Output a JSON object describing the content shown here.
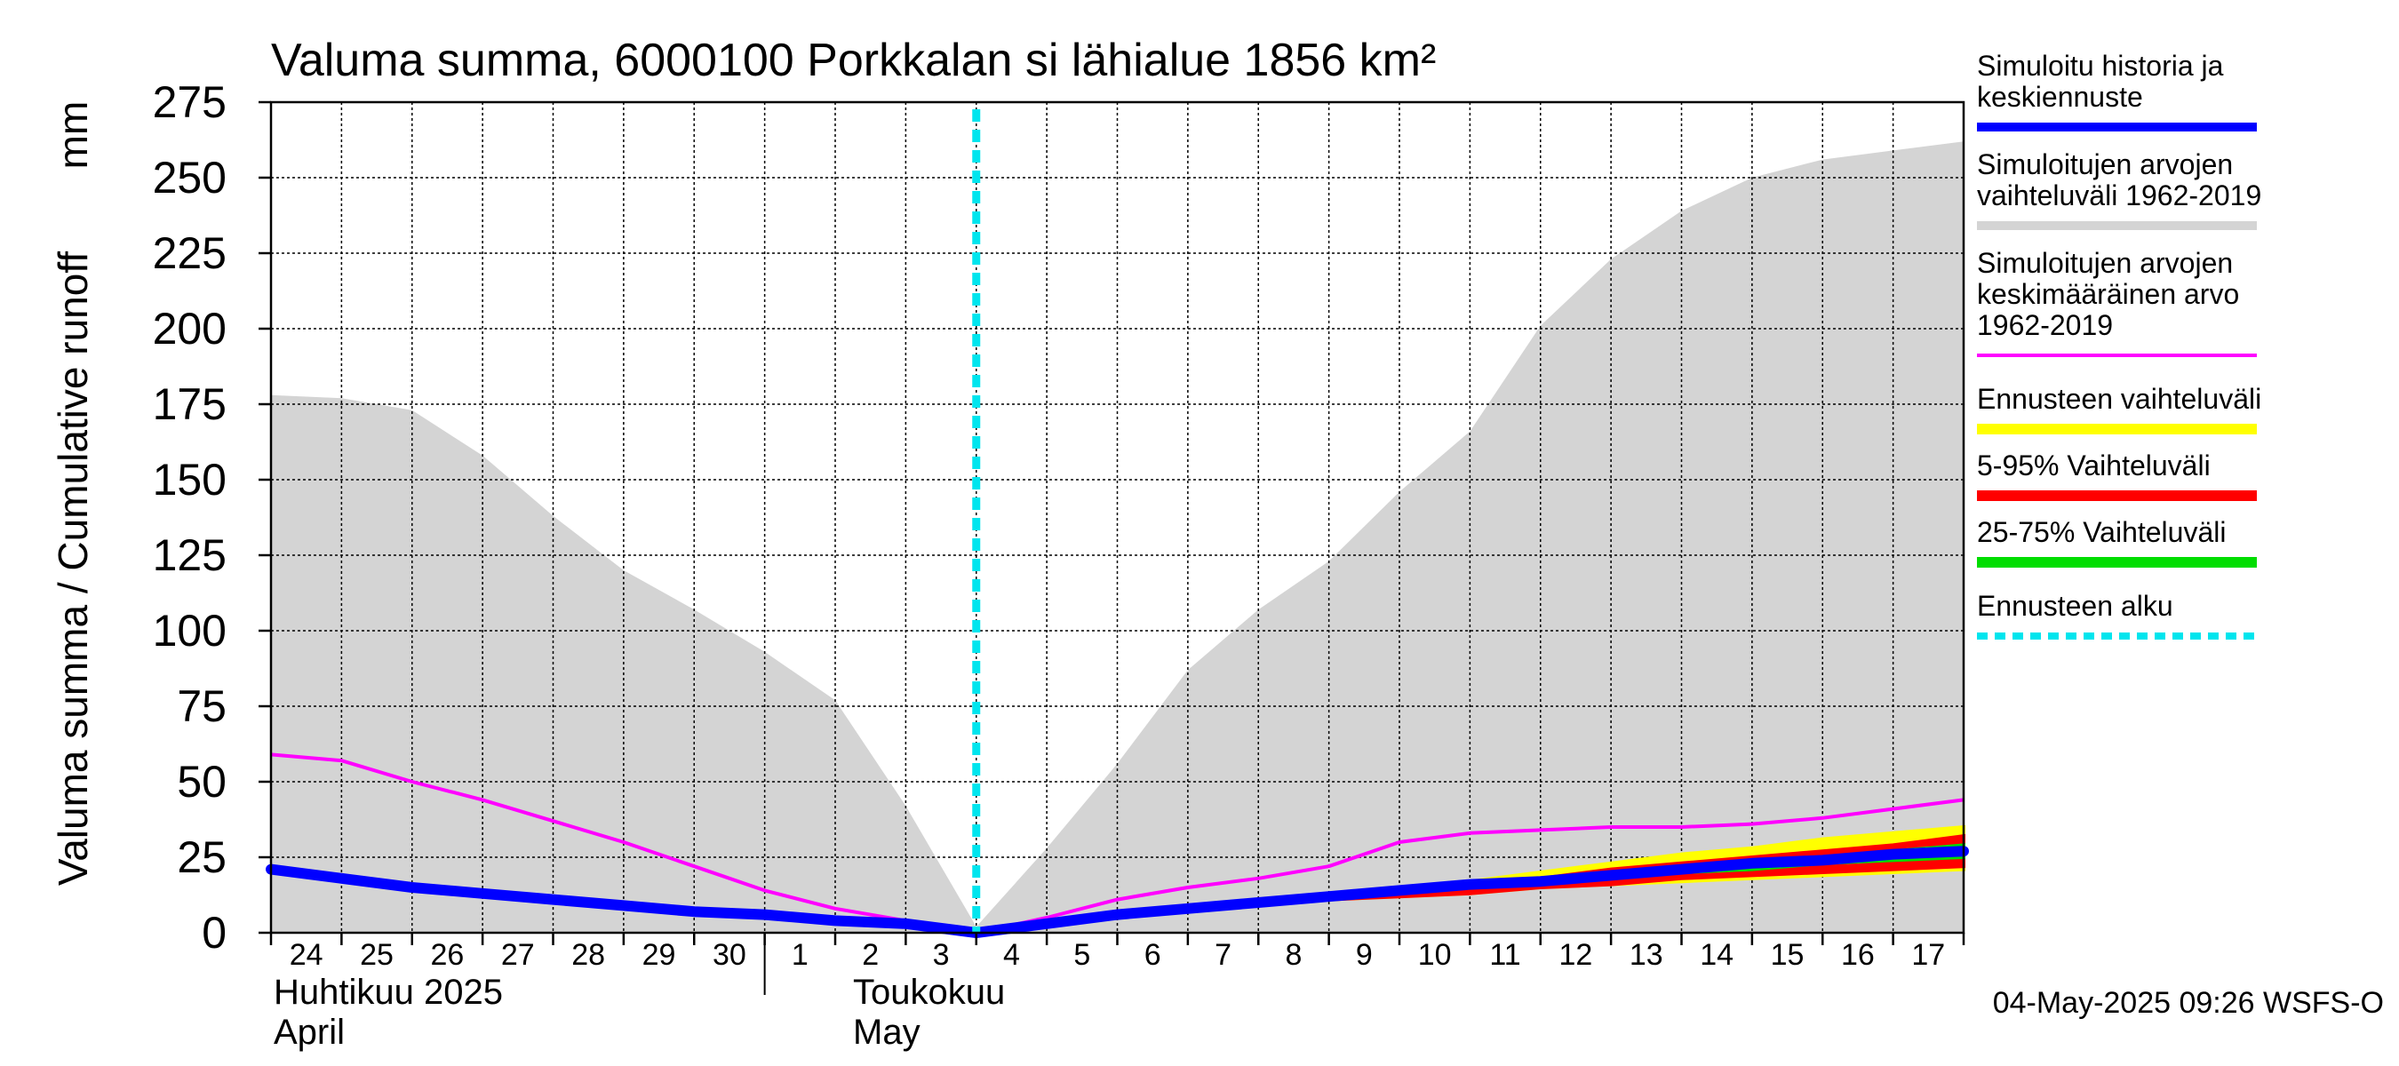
{
  "chart_data": {
    "type": "area",
    "title": "Valuma summa, 6000100 Porkkalan si lähialue 1856 km²",
    "ylabel": "Valuma summa / Cumulative runoff",
    "yunit": "mm",
    "ylim": [
      0,
      275
    ],
    "yticks": [
      0,
      25,
      50,
      75,
      100,
      125,
      150,
      175,
      200,
      225,
      250,
      275
    ],
    "grid": true,
    "legend_position": "right",
    "x_tick_labels": [
      "24",
      "25",
      "26",
      "27",
      "28",
      "29",
      "30",
      "1",
      "2",
      "3",
      "4",
      "5",
      "6",
      "7",
      "8",
      "9",
      "10",
      "11",
      "12",
      "13",
      "14",
      "15",
      "16",
      "17"
    ],
    "month_labels": [
      {
        "fi": "Huhtikuu  2025",
        "en": "April"
      },
      {
        "fi": "Toukokuu",
        "en": "May"
      }
    ],
    "forecast_start": "2025-05-04",
    "timestamp": "04-May-2025 09:26 WSFS-O",
    "x": [
      "2025-04-24",
      "2025-04-25",
      "2025-04-26",
      "2025-04-27",
      "2025-04-28",
      "2025-04-29",
      "2025-04-30",
      "2025-05-01",
      "2025-05-02",
      "2025-05-03",
      "2025-05-04",
      "2025-05-05",
      "2025-05-06",
      "2025-05-07",
      "2025-05-08",
      "2025-05-09",
      "2025-05-10",
      "2025-05-11",
      "2025-05-12",
      "2025-05-13",
      "2025-05-14",
      "2025-05-15",
      "2025-05-16",
      "2025-05-17",
      "2025-05-18"
    ],
    "series": [
      {
        "name": "Simuloitujen arvojen vaihteluväli 1962-2019",
        "kind": "band",
        "color": "#d4d4d4",
        "lower": [
          0,
          0,
          0,
          0,
          0,
          0,
          0,
          0,
          0,
          0,
          0,
          0,
          0,
          0,
          0,
          0,
          0,
          0,
          0,
          0,
          0,
          0,
          0,
          0,
          0
        ],
        "upper": [
          178,
          177,
          173,
          158,
          138,
          120,
          107,
          93,
          77,
          42,
          2,
          28,
          56,
          87,
          107,
          123,
          146,
          166,
          201,
          223,
          239,
          250,
          256,
          259,
          262
        ]
      },
      {
        "name": "Ennusteen vaihteluväli",
        "kind": "band",
        "color": "#ffff00",
        "lower": [
          null,
          null,
          null,
          null,
          null,
          null,
          null,
          null,
          null,
          null,
          0,
          5,
          9,
          13,
          17,
          20,
          23,
          26,
          29,
          32,
          35,
          38,
          41,
          44,
          47
        ],
        "upper": [
          null,
          null,
          null,
          null,
          null,
          null,
          null,
          null,
          null,
          null,
          0,
          5,
          9,
          13,
          17,
          20,
          23,
          26,
          29,
          32,
          35,
          38,
          41,
          44,
          47
        ]
      },
      {
        "name": "5-95% Vaihteluväli",
        "kind": "band",
        "color": "#ff0000",
        "lower": [
          null,
          null,
          null,
          null,
          null,
          null,
          null,
          null,
          null,
          null,
          0,
          5,
          9,
          13,
          16,
          17,
          18,
          19,
          20,
          21,
          22,
          23,
          24,
          25,
          26
        ],
        "upper": [
          null,
          null,
          null,
          null,
          null,
          null,
          null,
          null,
          null,
          null,
          0,
          5,
          9,
          13,
          16,
          17,
          18,
          19,
          20,
          21,
          22,
          23,
          24,
          25,
          26
        ]
      },
      {
        "name": "25-75% Vaihteluväli",
        "kind": "band",
        "color": "#00dd00",
        "lower": [
          null,
          null,
          null,
          null,
          null,
          null,
          null,
          null,
          null,
          null,
          0,
          5,
          9,
          13,
          16,
          17,
          18,
          19,
          20,
          21,
          22,
          23,
          24,
          25,
          26
        ],
        "upper": [
          null,
          null,
          null,
          null,
          null,
          null,
          null,
          null,
          null,
          null,
          0,
          5,
          9,
          13,
          16,
          17,
          18,
          19,
          20,
          21,
          22,
          23,
          24,
          25,
          26
        ]
      },
      {
        "name": "Simuloitujen arvojen keskimääräinen arvo 1962-2019",
        "kind": "line",
        "color": "#ff00ff",
        "values": [
          59,
          57,
          50,
          44,
          37,
          30,
          22,
          14,
          8,
          4,
          0,
          5,
          11,
          15,
          18,
          22,
          30,
          33,
          34,
          35,
          35,
          36,
          38,
          41,
          44
        ]
      },
      {
        "name": "Simuloitu historia ja keskiennuste",
        "kind": "line",
        "color": "#0000ff",
        "values": [
          21,
          18,
          15,
          13,
          11,
          9,
          7,
          6,
          4,
          3,
          0,
          3,
          6,
          8,
          10,
          12,
          14,
          16,
          17,
          19,
          21,
          23,
          24,
          26,
          27
        ]
      }
    ],
    "forecast_band_values": {
      "ennuste_upper": [
        null,
        null,
        null,
        null,
        null,
        null,
        null,
        null,
        null,
        null,
        0,
        3,
        6,
        8,
        10,
        12,
        14,
        17,
        20,
        23,
        26,
        28,
        31,
        33,
        35
      ],
      "ennuste_lower": [
        null,
        null,
        null,
        null,
        null,
        null,
        null,
        null,
        null,
        null,
        0,
        3,
        6,
        8,
        10,
        11,
        12,
        13,
        15,
        16,
        17,
        18,
        19,
        20,
        21
      ],
      "p95": [
        null,
        null,
        null,
        null,
        null,
        null,
        null,
        null,
        null,
        null,
        0,
        3,
        6,
        8,
        10,
        12,
        14,
        16,
        18,
        21,
        23,
        25,
        27,
        29,
        32
      ],
      "p05": [
        null,
        null,
        null,
        null,
        null,
        null,
        null,
        null,
        null,
        null,
        0,
        3,
        6,
        8,
        10,
        11,
        12,
        13,
        15,
        16,
        18,
        19,
        20,
        21,
        22
      ],
      "p75": [
        null,
        null,
        null,
        null,
        null,
        null,
        null,
        null,
        null,
        null,
        0,
        3,
        6,
        8,
        10,
        12,
        14,
        16,
        17,
        19,
        21,
        23,
        25,
        27,
        29
      ],
      "p25": [
        null,
        null,
        null,
        null,
        null,
        null,
        null,
        null,
        null,
        null,
        0,
        3,
        6,
        8,
        10,
        12,
        13,
        15,
        16,
        18,
        20,
        21,
        23,
        24,
        25
      ]
    },
    "legend": [
      {
        "label": "Simuloitu historia ja keskiennuste",
        "color": "#0000ff",
        "style": "solid"
      },
      {
        "label": "Simuloitujen arvojen vaihteluväli 1962-2019",
        "color": "#d4d4d4",
        "style": "solid"
      },
      {
        "label": "Simuloitujen arvojen keskimääräinen arvo 1962-2019",
        "color": "#ff00ff",
        "style": "solid"
      },
      {
        "label": "Ennusteen vaihteluväli",
        "color": "#ffff00",
        "style": "solid"
      },
      {
        "label": "5-95% Vaihteluväli",
        "color": "#ff0000",
        "style": "solid"
      },
      {
        "label": "25-75% Vaihteluväli",
        "color": "#00dd00",
        "style": "solid"
      },
      {
        "label": "Ennusteen alku",
        "color": "#00e5ee",
        "style": "dashed"
      }
    ]
  },
  "legend_text": {
    "item1": [
      "Simuloitu historia ja",
      "keskiennuste"
    ],
    "item2": [
      "Simuloitujen arvojen",
      "vaihteluväli 1962-2019"
    ],
    "item3": [
      "Simuloitujen arvojen",
      "keskimääräinen arvo",
      "   1962-2019"
    ],
    "item4": [
      "Ennusteen vaihteluväli"
    ],
    "item5": [
      "5-95% Vaihteluväli"
    ],
    "item6": [
      "25-75% Vaihteluväli"
    ],
    "item7": [
      "Ennusteen alku"
    ]
  }
}
